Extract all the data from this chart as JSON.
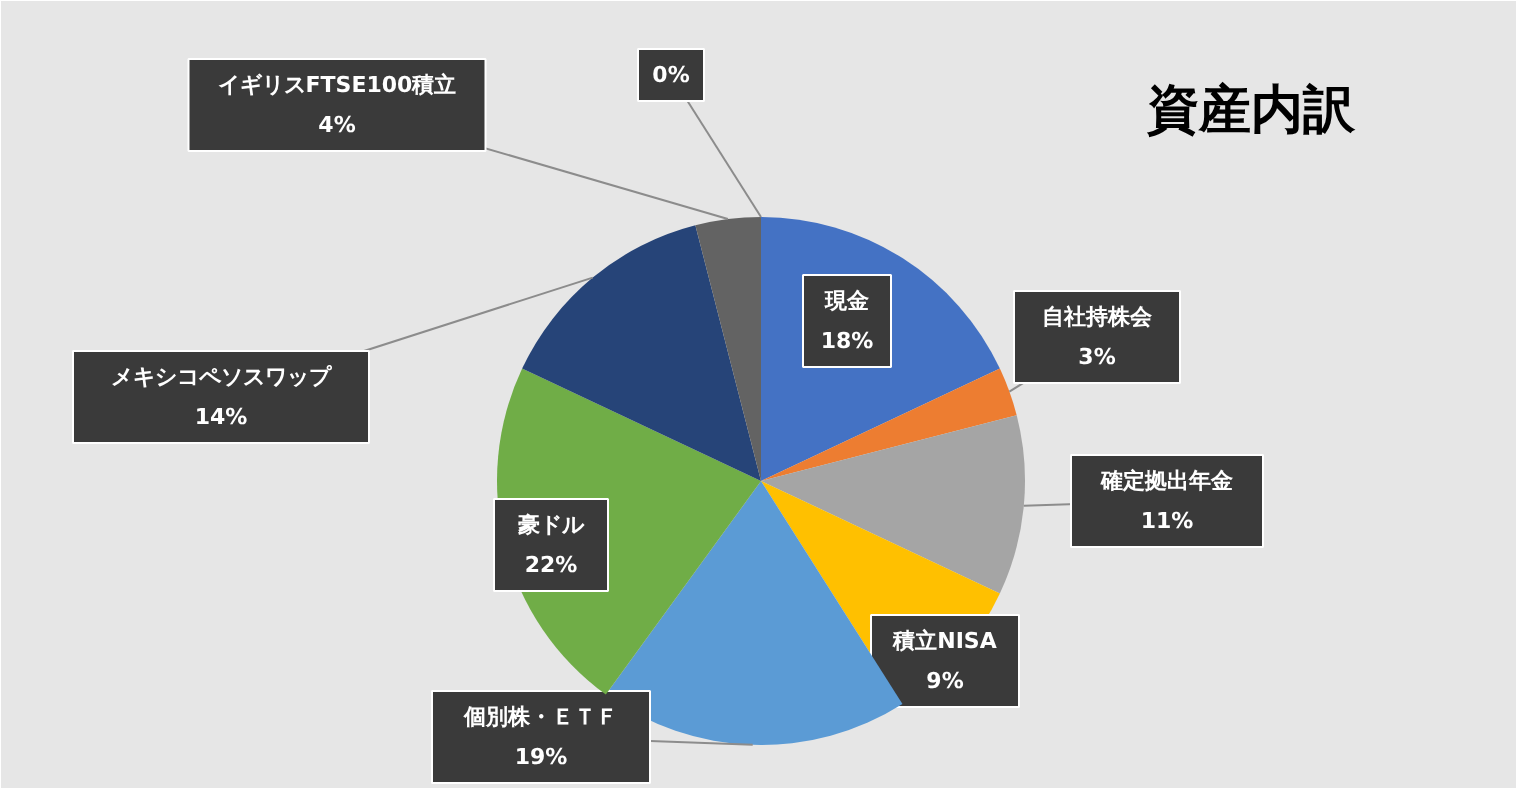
{
  "chart_data": {
    "type": "pie",
    "title": "資産内訳",
    "categories": [
      "現金",
      "自社持株会",
      "確定拠出年金",
      "積立NISA",
      "個別株・ＥＴＦ",
      "豪ドル",
      "メキシコペソスワップ",
      "イギリスFTSE100積立",
      null
    ],
    "values": [
      18,
      3,
      11,
      9,
      19,
      22,
      14,
      4,
      0
    ],
    "colors": [
      "#4472c4",
      "#ed7d31",
      "#a5a5a5",
      "#ffc000",
      "#5b9bd5",
      "#70ad47",
      "#264478",
      "#636363",
      "#997300"
    ],
    "value_labels": [
      "18%",
      "3%",
      "11%",
      "9%",
      "19%",
      "22%",
      "14%",
      "4%",
      "0%"
    ]
  }
}
